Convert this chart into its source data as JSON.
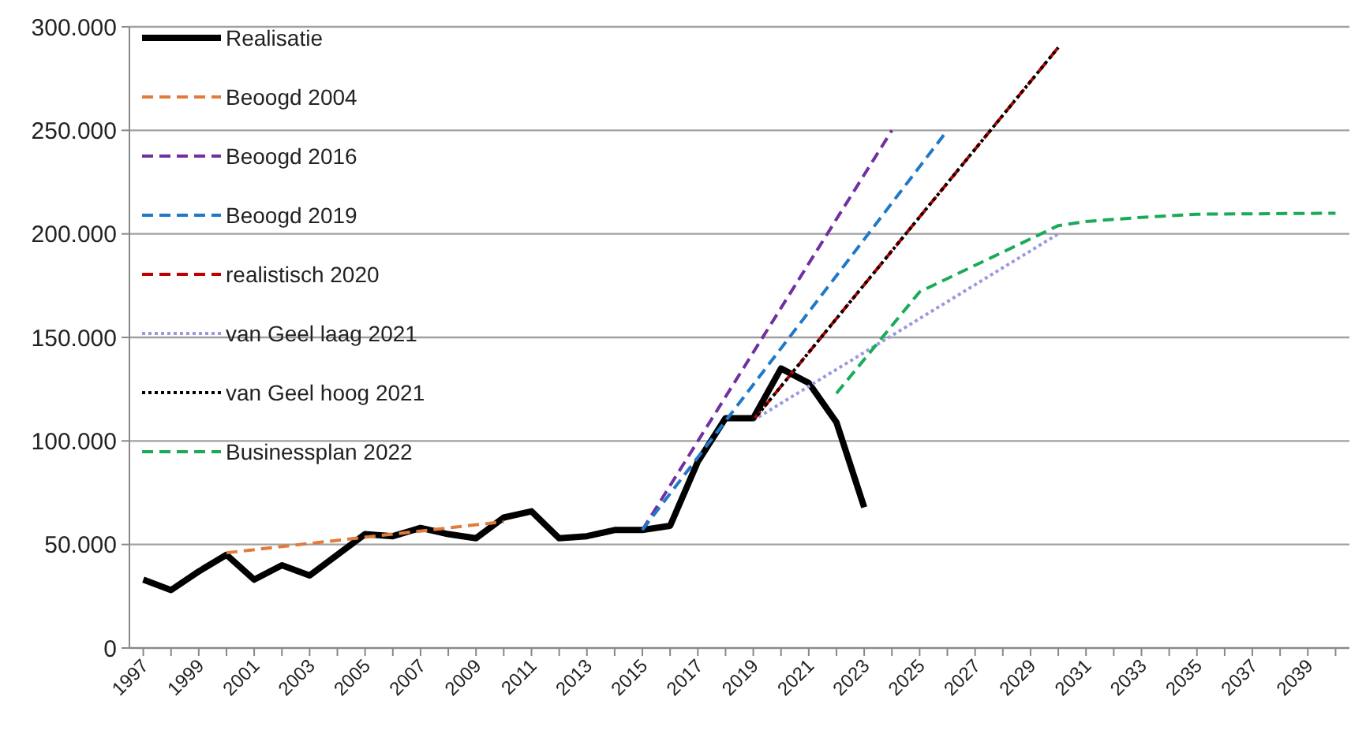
{
  "chart_data": {
    "type": "line",
    "xlim": [
      1996.5,
      2040.5
    ],
    "xticks": [
      {
        "value": 1997,
        "label": "1997"
      },
      {
        "value": 1998,
        "label": null
      },
      {
        "value": 1999,
        "label": "1999"
      },
      {
        "value": 2000,
        "label": null
      },
      {
        "value": 2001,
        "label": "2001"
      },
      {
        "value": 2002,
        "label": null
      },
      {
        "value": 2003,
        "label": "2003"
      },
      {
        "value": 2004,
        "label": null
      },
      {
        "value": 2005,
        "label": "2005"
      },
      {
        "value": 2006,
        "label": null
      },
      {
        "value": 2007,
        "label": "2007"
      },
      {
        "value": 2008,
        "label": null
      },
      {
        "value": 2009,
        "label": "2009"
      },
      {
        "value": 2010,
        "label": null
      },
      {
        "value": 2011,
        "label": "2011"
      },
      {
        "value": 2012,
        "label": null
      },
      {
        "value": 2013,
        "label": "2013"
      },
      {
        "value": 2014,
        "label": null
      },
      {
        "value": 2015,
        "label": "2015"
      },
      {
        "value": 2016,
        "label": null
      },
      {
        "value": 2017,
        "label": "2017"
      },
      {
        "value": 2018,
        "label": null
      },
      {
        "value": 2019,
        "label": "2019"
      },
      {
        "value": 2020,
        "label": null
      },
      {
        "value": 2021,
        "label": "2021"
      },
      {
        "value": 2022,
        "label": null
      },
      {
        "value": 2023,
        "label": "2023"
      },
      {
        "value": 2024,
        "label": null
      },
      {
        "value": 2025,
        "label": "2025"
      },
      {
        "value": 2026,
        "label": null
      },
      {
        "value": 2027,
        "label": "2027"
      },
      {
        "value": 2028,
        "label": null
      },
      {
        "value": 2029,
        "label": "2029"
      },
      {
        "value": 2030,
        "label": null
      },
      {
        "value": 2031,
        "label": "2031"
      },
      {
        "value": 2032,
        "label": null
      },
      {
        "value": 2033,
        "label": "2033"
      },
      {
        "value": 2034,
        "label": null
      },
      {
        "value": 2035,
        "label": "2035"
      },
      {
        "value": 2036,
        "label": null
      },
      {
        "value": 2037,
        "label": "2037"
      },
      {
        "value": 2038,
        "label": null
      },
      {
        "value": 2039,
        "label": "2039"
      },
      {
        "value": 2040,
        "label": null
      }
    ],
    "ylim": [
      0,
      300000
    ],
    "yticks": [
      0,
      {
        "value": 50000,
        "label": "50.000"
      },
      {
        "value": 100000,
        "label": "100.000"
      },
      {
        "value": 150000,
        "label": "150.000"
      },
      {
        "value": 200000,
        "label": "200.000"
      },
      {
        "value": 250000,
        "label": "250.000"
      },
      {
        "value": 300000,
        "label": "300.000"
      }
    ],
    "grid": "y",
    "legend": "top left",
    "marker": "none",
    "series": [
      {
        "name": "Realisatie",
        "color": "#000000",
        "line_style": "solid",
        "x": [
          1997,
          1998,
          1999,
          2000,
          2001,
          2002,
          2003,
          2004,
          2005,
          2006,
          2007,
          2008,
          2009,
          2010,
          2011,
          2012,
          2013,
          2014,
          2015,
          2016,
          2017,
          2018,
          2019,
          2020,
          2021,
          2022,
          2023
        ],
        "values": [
          33000,
          28000,
          37000,
          45000,
          33000,
          40000,
          35000,
          45000,
          55000,
          54000,
          58000,
          55000,
          53000,
          63000,
          66000,
          53000,
          54000,
          57000,
          57000,
          59000,
          90000,
          111000,
          111000,
          135000,
          128000,
          109000,
          68000
        ]
      },
      {
        "name": "Beoogd 2004",
        "color": "#e07b39",
        "line_style": "dashed",
        "x": [
          2000,
          2010
        ],
        "values": [
          46000,
          61000
        ]
      },
      {
        "name": "Beoogd 2016",
        "color": "#7030a0",
        "line_style": "dashed",
        "x": [
          2015,
          2024
        ],
        "values": [
          57000,
          250000
        ]
      },
      {
        "name": "Beoogd 2019",
        "color": "#1f78c8",
        "line_style": "dashed",
        "x": [
          2015,
          2026
        ],
        "values": [
          57000,
          250000
        ]
      },
      {
        "name": "realistisch 2020",
        "color": "#c00000",
        "line_style": "dashed",
        "x": [
          2019,
          2030
        ],
        "values": [
          110000,
          290000
        ]
      },
      {
        "name": "van Geel laag 2021",
        "color": "#9999dd",
        "line_style": "dotted",
        "x": [
          2019,
          2030
        ],
        "values": [
          110000,
          200000
        ]
      },
      {
        "name": "van Geel hoog 2021",
        "color": "#000000",
        "line_style": "dotted",
        "x": [
          2019,
          2030
        ],
        "values": [
          110000,
          290000
        ]
      },
      {
        "name": "Businessplan 2022",
        "color": "#1aaa5a",
        "line_style": "dashed",
        "x": [
          2022,
          2025,
          2030,
          2031,
          2033,
          2035,
          2040
        ],
        "values": [
          123000,
          172000,
          204000,
          206000,
          208000,
          209500,
          210000
        ]
      }
    ]
  }
}
